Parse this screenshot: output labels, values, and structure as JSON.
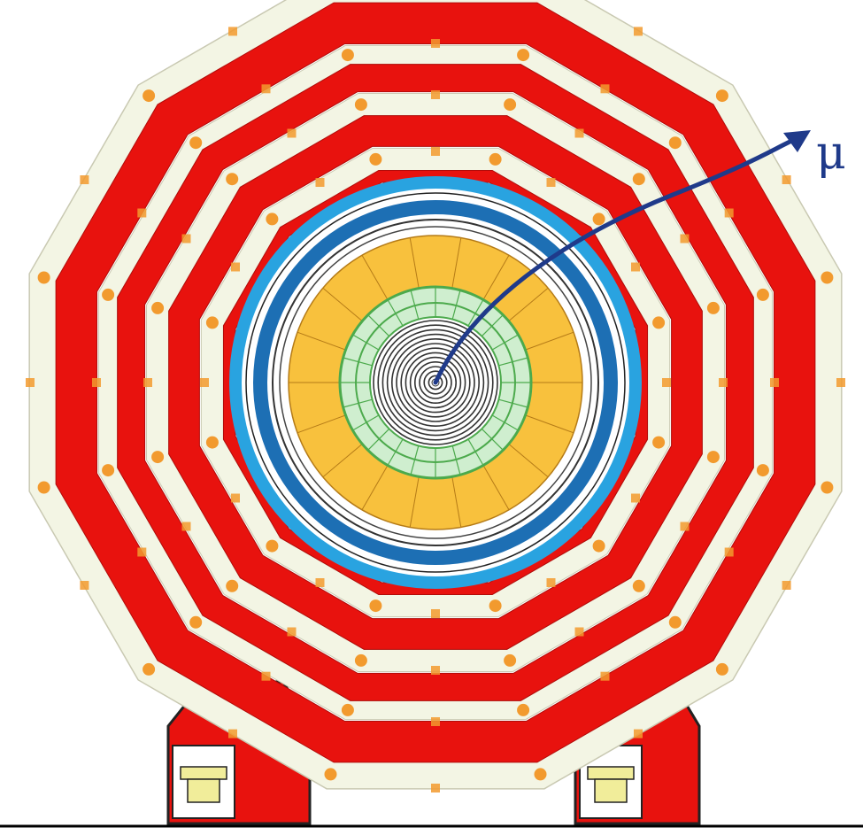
{
  "diagram": {
    "particle_label": "μ",
    "colors": {
      "background": "#ffffff",
      "return_yoke": "#e8120e",
      "muon_chamber": "#f3f5e4",
      "spacer": "#f29a2e",
      "inner_ring_fill": "#ffffff",
      "blue_dark": "#1d6fb4",
      "blue_light": "#29a3e0",
      "hcal": "#f8c13d",
      "hcal_segment": "#b57b17",
      "ecal": "#cfeecf",
      "ecal_border": "#4caa4c",
      "tracker_line": "#333333",
      "track": "#1f3a8a",
      "ground": "#000000",
      "support": "#e8120e",
      "support_outline": "#222222",
      "support_foot": "#f1ed9a"
    }
  }
}
